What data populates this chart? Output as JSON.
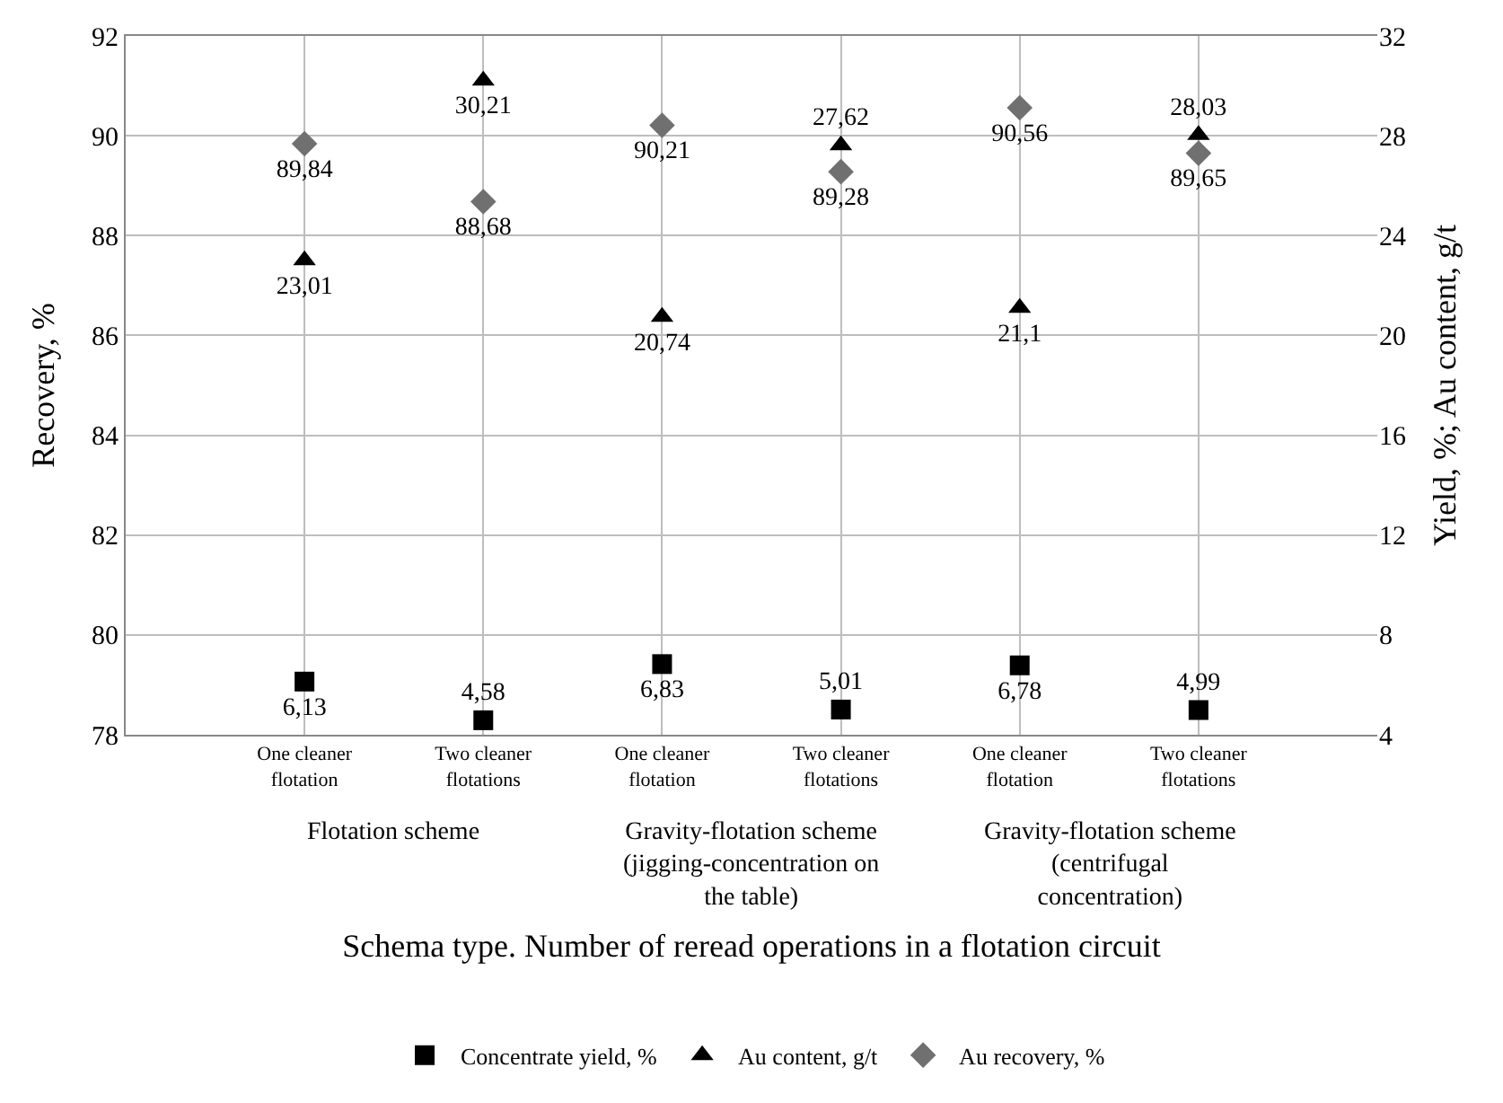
{
  "chart_data": {
    "type": "scatter",
    "categories": [
      "One cleaner flotation",
      "Two cleaner flotations",
      "One cleaner flotation",
      "Two cleaner flotations",
      "One cleaner flotation",
      "Two cleaner flotations"
    ],
    "series": [
      {
        "name": "Concentrate yield, %",
        "color": "#000000",
        "marker": "square",
        "axis": "y2",
        "values": [
          6.13,
          4.58,
          6.83,
          5.01,
          6.78,
          4.99
        ],
        "value_labels": [
          "6,13",
          "4,58",
          "6,83",
          "5,01",
          "6,78",
          "4,99"
        ]
      },
      {
        "name": "Au content, g/t",
        "color": "#000000",
        "marker": "triangle",
        "axis": "y2",
        "values": [
          23.01,
          30.21,
          20.74,
          27.62,
          21.1,
          28.03
        ],
        "value_labels": [
          "23,01",
          "30,21",
          "20,74",
          "27,62",
          "21,1",
          "28,03"
        ]
      },
      {
        "name": "Au recovery, %",
        "color": "#707070",
        "marker": "diamond",
        "values": [
          89.84,
          88.68,
          90.21,
          89.28,
          90.56,
          89.65
        ],
        "value_labels": [
          "89,84",
          "88,68",
          "90,21",
          "89,28",
          "90,56",
          "89,65"
        ]
      }
    ],
    "ylabel": "Recovery, %",
    "y2label": "Yield, %; Au content, g/t",
    "xlabel": "Schema type. Number of reread operations in a flotation circuit",
    "annotations": [
      "Flotation scheme",
      "Gravity-flotation scheme (jigging-concentration on the table)",
      "Gravity-flotation scheme (centrifugal concentration)"
    ],
    "ylim": [
      78,
      92
    ],
    "yticks": [
      78,
      80,
      82,
      84,
      86,
      88,
      90,
      92
    ],
    "y2lim": [
      4,
      32
    ],
    "y2ticks": [
      4,
      8,
      12,
      16,
      20,
      24,
      28,
      32
    ],
    "grid": true,
    "legend": "bottom"
  }
}
